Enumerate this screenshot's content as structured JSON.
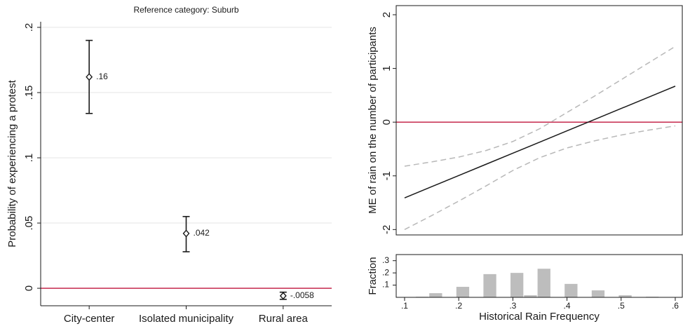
{
  "chart_data": [
    {
      "type": "dot",
      "title": "Reference category: Suburb",
      "ylabel": "Probability of experiencing a protest",
      "categories": [
        "City-center",
        "Isolated municipality",
        "Rural area"
      ],
      "values": [
        0.162,
        0.042,
        -0.0058
      ],
      "value_labels": [
        ".16",
        ".042",
        "-.0058"
      ],
      "ci_low": [
        0.134,
        0.028,
        -0.0085
      ],
      "ci_high": [
        0.19,
        0.055,
        -0.003
      ],
      "color": "#1a1a1a",
      "ylim": [
        -0.0134,
        0.2043
      ],
      "yticks": [
        {
          "value": 0.2,
          "label": ".2"
        },
        {
          "value": 0.15,
          "label": ".15"
        },
        {
          "value": 0.1,
          "label": ".1"
        },
        {
          "value": 0.05,
          "label": ".05"
        },
        0
      ],
      "grid": true,
      "refline": 0,
      "refline_color": "#c0143c"
    },
    {
      "type": "line",
      "ylabel": "ME of rain on the number of participants",
      "x": [
        0.1,
        0.15,
        0.2,
        0.25,
        0.3,
        0.35,
        0.4,
        0.45,
        0.5,
        0.55,
        0.6
      ],
      "series": [
        {
          "color": "#1a1a1a",
          "dashed": false,
          "values": [
            -1.41,
            -1.202,
            -0.994,
            -0.786,
            -0.578,
            -0.37,
            -0.162,
            0.046,
            0.254,
            0.462,
            0.67
          ]
        },
        {
          "color": "#b8b8b8",
          "dashed": true,
          "values": [
            -0.82,
            -0.74,
            -0.65,
            -0.53,
            -0.36,
            -0.12,
            0.18,
            0.48,
            0.79,
            1.1,
            1.41
          ]
        },
        {
          "color": "#b8b8b8",
          "dashed": true,
          "values": [
            -2.0,
            -1.74,
            -1.47,
            -1.19,
            -0.9,
            -0.66,
            -0.48,
            -0.35,
            -0.24,
            -0.15,
            -0.07
          ]
        }
      ],
      "xlim": [
        0.0845,
        0.613
      ],
      "ylim": [
        -2.1,
        2.17
      ],
      "yticks": [
        2,
        1,
        0,
        -1,
        -2
      ],
      "grid": false,
      "refline": 0,
      "refline_color": "#c0143c"
    },
    {
      "type": "histogram",
      "xlabel": "Historical Rain Frequency",
      "ylabel": "Fraction",
      "bins": [
        0.12,
        0.145,
        0.17,
        0.195,
        0.22,
        0.245,
        0.27,
        0.295,
        0.32,
        0.345,
        0.37,
        0.395,
        0.42,
        0.445,
        0.47,
        0.495,
        0.52,
        0.545,
        0.57
      ],
      "values": [
        0.005,
        0.034,
        0,
        0.086,
        0,
        0.19,
        0,
        0.2,
        0.017,
        0.234,
        0,
        0.11,
        0,
        0.057,
        0,
        0.017,
        0,
        0.005
      ],
      "color": "#bdbdbd",
      "xlim": [
        0.0845,
        0.613
      ],
      "ylim": [
        0,
        0.35
      ],
      "xticks": [
        {
          "value": 0.1,
          "label": ".1"
        },
        {
          "value": 0.2,
          "label": ".2"
        },
        {
          "value": 0.3,
          "label": ".3"
        },
        {
          "value": 0.4,
          "label": ".4"
        },
        {
          "value": 0.5,
          "label": ".5"
        },
        {
          "value": 0.6,
          "label": ".6"
        }
      ],
      "yticks": [
        {
          "value": 0.1,
          "label": ".1"
        },
        {
          "value": 0.2,
          "label": ".2"
        },
        {
          "value": 0.3,
          "label": ".3"
        }
      ],
      "grid": false
    }
  ]
}
